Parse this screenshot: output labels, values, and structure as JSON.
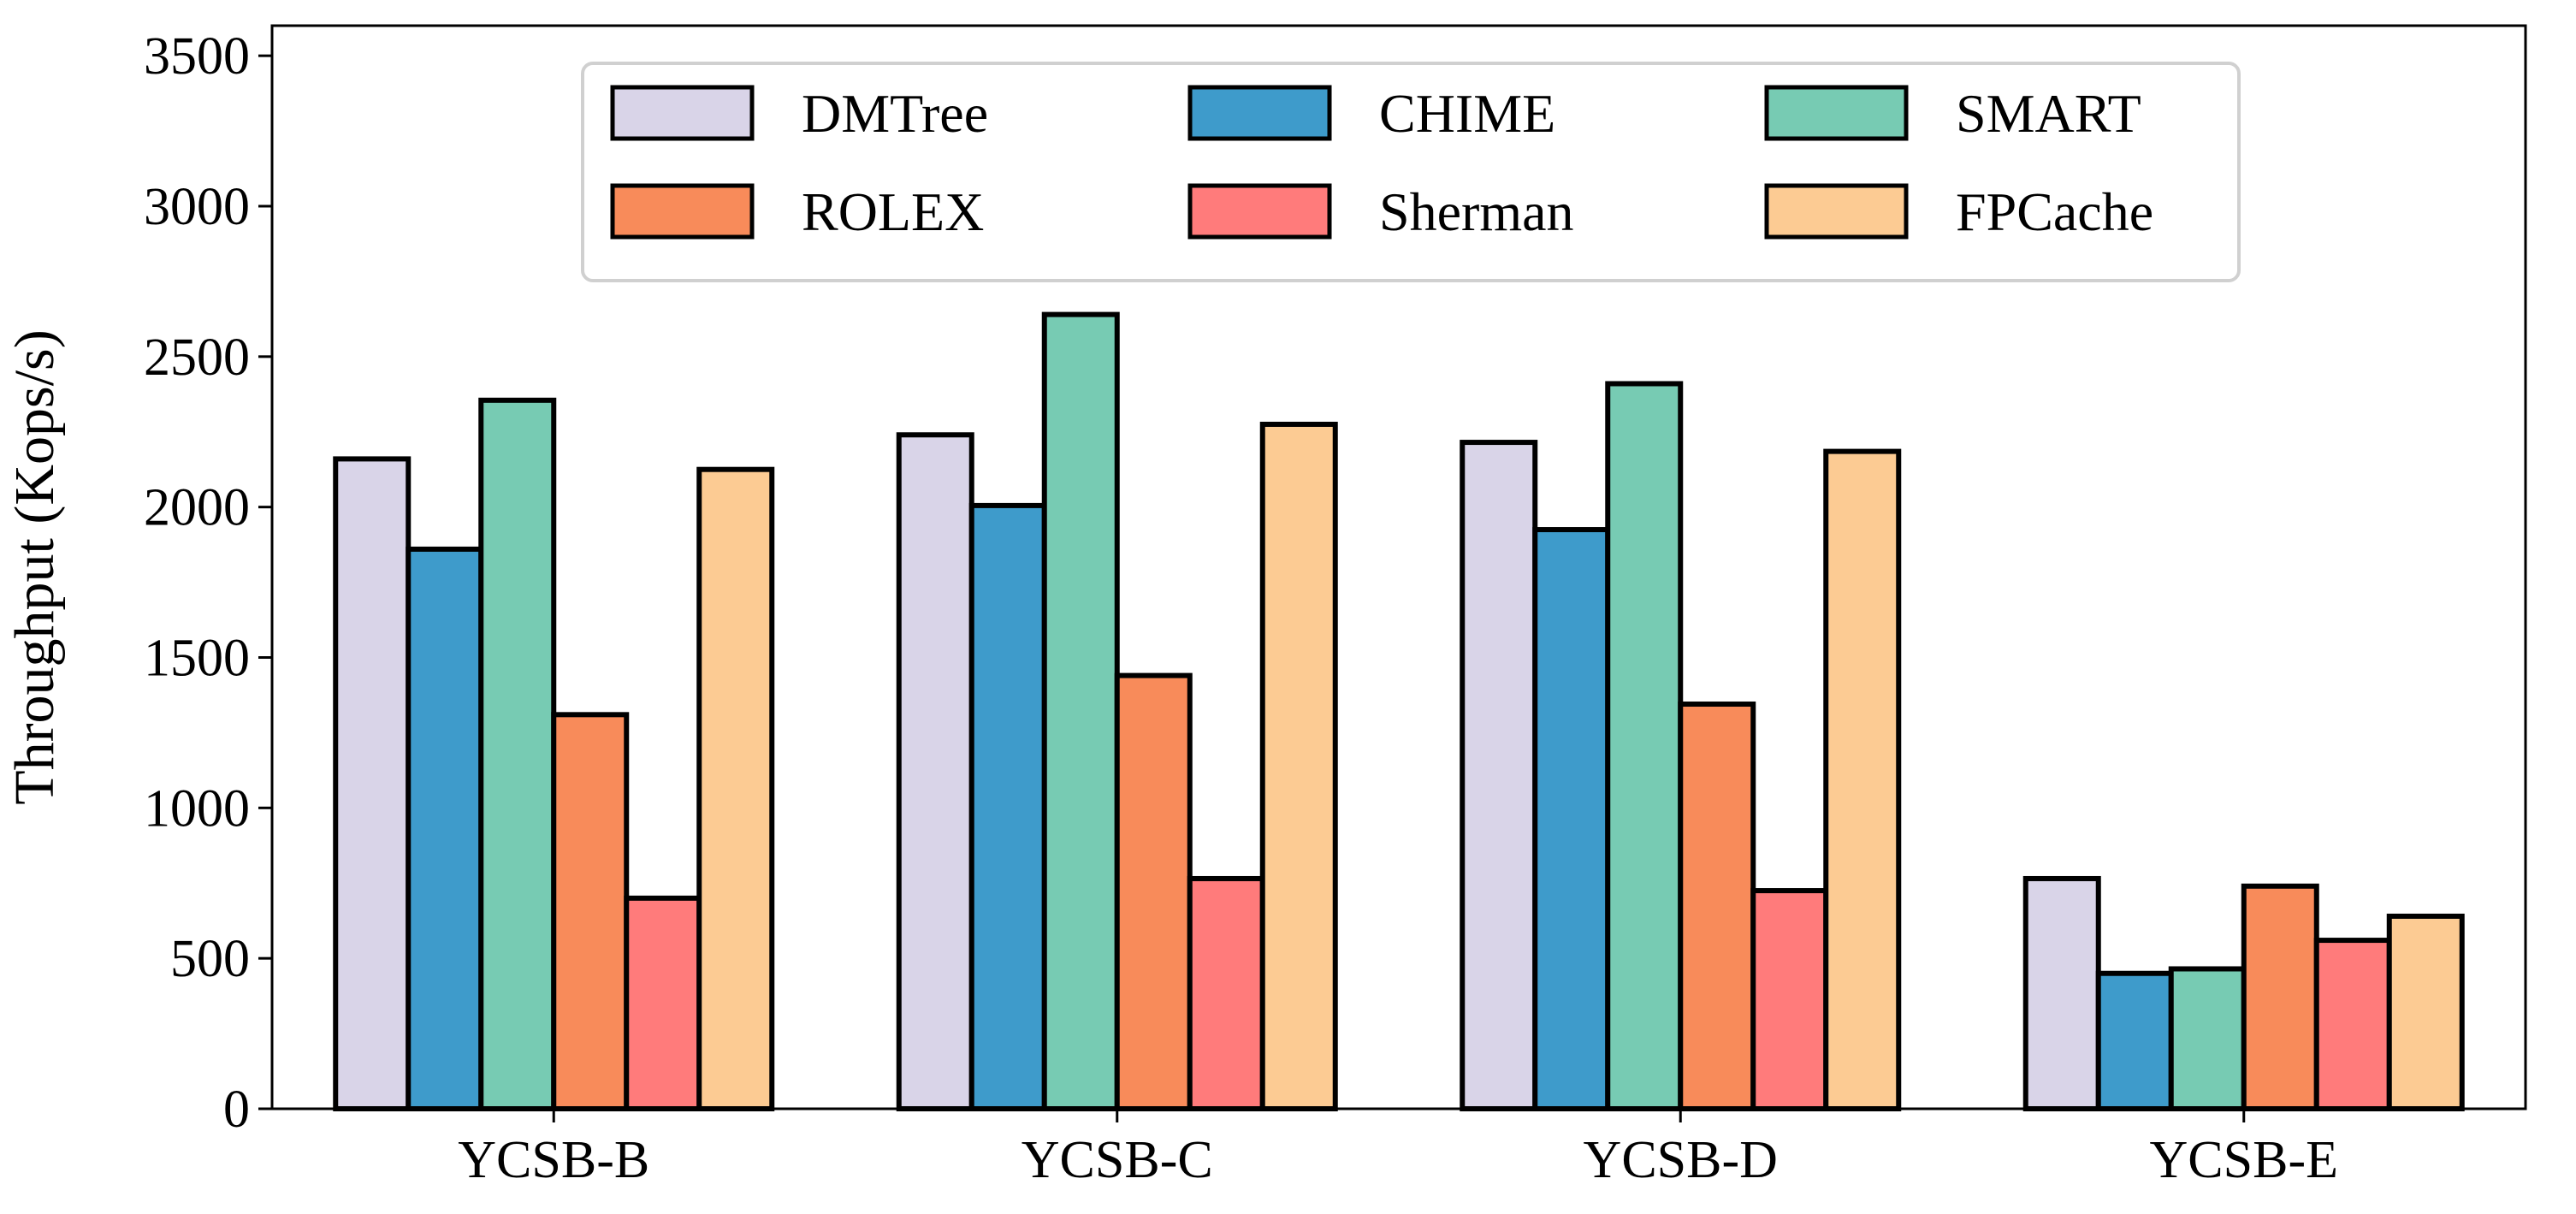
{
  "chart_data": {
    "type": "bar",
    "title": "",
    "xlabel": "",
    "ylabel": "Throughput (Kops/s)",
    "ylim": [
      0,
      3600
    ],
    "yticks": [
      0,
      500,
      1000,
      1500,
      2000,
      2500,
      3000,
      3500
    ],
    "grid": false,
    "legend_position": "top-center",
    "categories": [
      "YCSB-B",
      "YCSB-C",
      "YCSB-D",
      "YCSB-E"
    ],
    "series": [
      {
        "name": "DMTree",
        "color": "#d9d4e8",
        "values": [
          2160,
          2240,
          2215,
          765
        ]
      },
      {
        "name": "CHIME",
        "color": "#3e9bcb",
        "values": [
          1860,
          2005,
          1925,
          450
        ]
      },
      {
        "name": "SMART",
        "color": "#77cbb3",
        "values": [
          2355,
          2640,
          2410,
          465
        ]
      },
      {
        "name": "ROLEX",
        "color": "#f88b5a",
        "values": [
          1310,
          1440,
          1345,
          740
        ]
      },
      {
        "name": "Sherman",
        "color": "#ff7b7b",
        "values": [
          700,
          765,
          725,
          560
        ]
      },
      {
        "name": "FPCache",
        "color": "#fccb93",
        "values": [
          2125,
          2275,
          2185,
          640
        ]
      }
    ]
  }
}
